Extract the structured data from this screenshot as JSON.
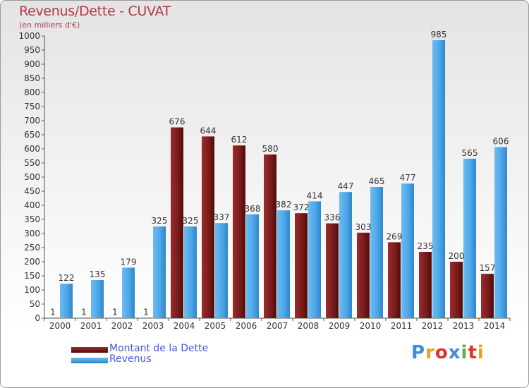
{
  "chart_data": {
    "type": "bar",
    "title": "Revenus/Dette - CUVAT",
    "subtitle": "(en milliers d'€)",
    "categories": [
      "2000",
      "2001",
      "2002",
      "2003",
      "2004",
      "2005",
      "2006",
      "2007",
      "2008",
      "2009",
      "2010",
      "2011",
      "2012",
      "2013",
      "2014"
    ],
    "series": [
      {
        "name": "Montant de la Dette",
        "color": "#7a1c1c",
        "values": [
          1,
          1,
          1,
          1,
          676,
          644,
          612,
          580,
          372,
          336,
          303,
          269,
          235,
          200,
          157
        ]
      },
      {
        "name": "Revenus",
        "color": "#4da6e8",
        "values": [
          122,
          135,
          179,
          325,
          325,
          337,
          368,
          382,
          414,
          447,
          465,
          477,
          985,
          565,
          606
        ]
      }
    ],
    "ylim": [
      0,
      1000
    ],
    "ytick_step": 50,
    "grid": false,
    "legend_position": "bottom-left"
  },
  "logo": {
    "letters": [
      "P",
      "r",
      "o",
      "x",
      "i",
      "t",
      "i"
    ],
    "colors": [
      "#3a8fd8",
      "#e8a020",
      "#e03030",
      "#3a8fd8",
      "#5ab040",
      "#e03030",
      "#e8a020"
    ]
  }
}
